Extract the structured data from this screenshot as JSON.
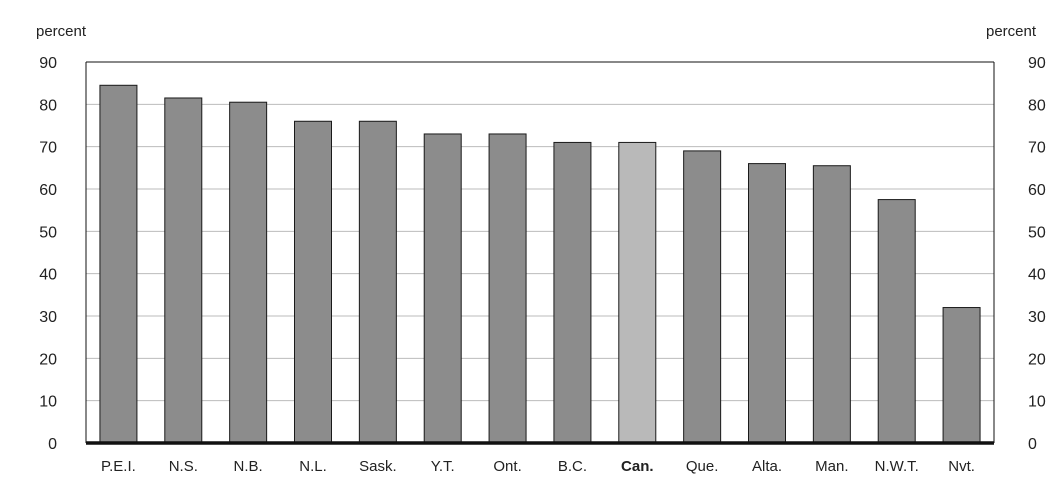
{
  "chart_data": {
    "type": "bar",
    "title": "",
    "xlabel": "",
    "ylabel": "percent",
    "y2label": "percent",
    "ylim": [
      0,
      90
    ],
    "yticks": [
      0,
      10,
      20,
      30,
      40,
      50,
      60,
      70,
      80,
      90
    ],
    "grid": true,
    "legend": "none",
    "categories": [
      "P.E.I.",
      "N.S.",
      "N.B.",
      "N.L.",
      "Sask.",
      "Y.T.",
      "Ont.",
      "B.C.",
      "Can.",
      "Que.",
      "Alta.",
      "Man.",
      "N.W.T.",
      "Nvt."
    ],
    "values": [
      84.5,
      81.5,
      80.5,
      76,
      76,
      73,
      73,
      71,
      71,
      69,
      66,
      65.5,
      57.5,
      32
    ],
    "highlight_category": "Can.",
    "colors": {
      "bar": "#8c8c8c",
      "highlight_bar": "#b9b9b9",
      "bar_stroke": "#1a1a1a",
      "grid": "#bbbbbb",
      "axis": "#111111"
    }
  }
}
